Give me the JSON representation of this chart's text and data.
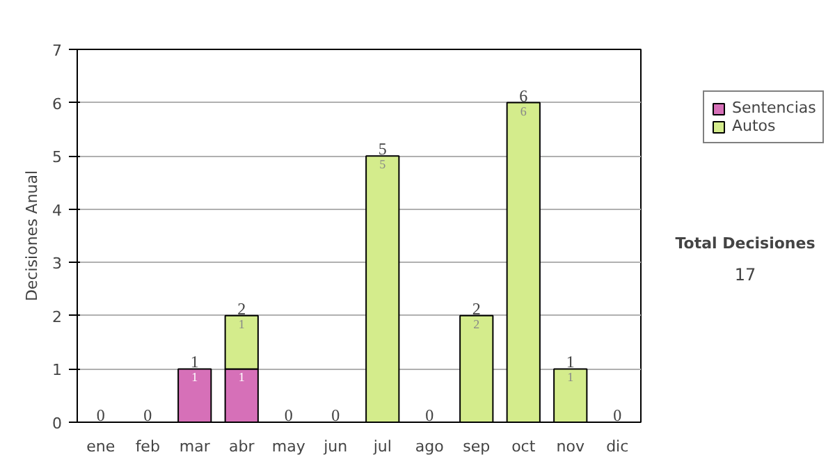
{
  "chart_data": {
    "type": "bar",
    "stacked": true,
    "ylabel": "Decisiones Anual",
    "categories": [
      "ene",
      "feb",
      "mar",
      "abr",
      "may",
      "jun",
      "jul",
      "ago",
      "sep",
      "oct",
      "nov",
      "dic"
    ],
    "series": [
      {
        "name": "Sentencias",
        "color": "#d670b8",
        "values": [
          0,
          0,
          1,
          1,
          0,
          0,
          0,
          0,
          0,
          0,
          0,
          0
        ],
        "value_labels": [
          null,
          null,
          "1",
          "1",
          null,
          null,
          null,
          null,
          null,
          null,
          null,
          null
        ]
      },
      {
        "name": "Autos",
        "color": "#d4ec8c",
        "values": [
          0,
          0,
          0,
          1,
          0,
          0,
          5,
          0,
          2,
          6,
          1,
          0
        ],
        "value_labels": [
          null,
          null,
          null,
          "1",
          null,
          null,
          "5",
          null,
          "2",
          "6",
          "1",
          null
        ]
      }
    ],
    "totals": [
      "0",
      "0",
      "1",
      "2",
      "0",
      "0",
      "5",
      "0",
      "2",
      "6",
      "1",
      "0"
    ],
    "ylim": [
      0,
      7
    ],
    "yticks": [
      0,
      1,
      2,
      3,
      4,
      5,
      6,
      7
    ],
    "grid": "y",
    "legend": "right",
    "annotations": [
      "Total Decisiones",
      "17"
    ]
  }
}
